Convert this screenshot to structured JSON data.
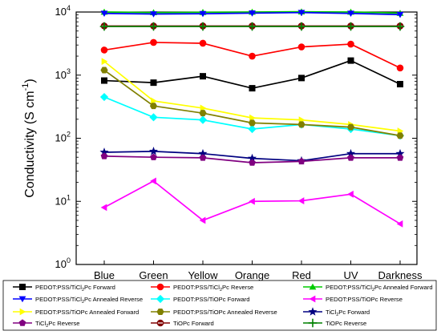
{
  "chart_data": {
    "type": "line",
    "title": "",
    "xlabel": "",
    "ylabel": "Conductivity (S cm⁻¹)",
    "ylabel_parts": [
      "Conductivity (S cm",
      "-1",
      ")"
    ],
    "yscale": "log",
    "ylim": [
      1,
      10000
    ],
    "y_ticks": [
      {
        "value": 1,
        "base": "10",
        "exp": "0"
      },
      {
        "value": 10,
        "base": "10",
        "exp": "1"
      },
      {
        "value": 100,
        "base": "10",
        "exp": "2"
      },
      {
        "value": 1000,
        "base": "10",
        "exp": "3"
      },
      {
        "value": 10000,
        "base": "10",
        "exp": "4"
      }
    ],
    "categories": [
      "Blue",
      "Green",
      "Yellow",
      "Orange",
      "Red",
      "UV",
      "Darkness"
    ],
    "legend_position": "bottom",
    "series": [
      {
        "name": "PEDOT:PSS/TiCl₂Pc Forward",
        "name_parts": [
          "PEDOT:PSS/TiCl",
          "2",
          "Pc Forward"
        ],
        "color": "#000000",
        "marker": "square",
        "values": [
          820,
          760,
          960,
          620,
          900,
          1700,
          720
        ]
      },
      {
        "name": "PEDOT:PSS/TiCl₂Pc Reverse",
        "name_parts": [
          "PEDOT:PSS/TiCl",
          "2",
          "Pc Reverse"
        ],
        "color": "#ff0000",
        "marker": "circle",
        "values": [
          2500,
          3300,
          3200,
          2000,
          2800,
          3100,
          1300
        ]
      },
      {
        "name": "PEDOT:PSS/TiCl₂Pc Annealed Forward",
        "name_parts": [
          "PEDOT:PSS/TiCl",
          "2",
          "Pc Annealed Forward"
        ],
        "color": "#00cc00",
        "marker": "triangle-up",
        "values": [
          10000,
          9800,
          9900,
          10000,
          10100,
          10000,
          9600
        ]
      },
      {
        "name": "PEDOT:PSS/TiCl₂Pc Annealed Reverse",
        "name_parts": [
          "PEDOT:PSS/TiCl",
          "2",
          "Pc Annealed Reverse"
        ],
        "color": "#0000ff",
        "marker": "triangle-down",
        "values": [
          9500,
          9300,
          9400,
          9600,
          9800,
          9500,
          9100
        ]
      },
      {
        "name": "PEDOT:PSS/TiOPc Forward",
        "name_parts": [
          "PEDOT:PSS/TiOPc Forward"
        ],
        "color": "#00ffff",
        "marker": "diamond",
        "values": [
          450,
          215,
          195,
          140,
          165,
          140,
          110
        ]
      },
      {
        "name": "PEDOT:PSS/TiOPc Reverse",
        "name_parts": [
          "PEDOT:PSS/TiOPc Reverse"
        ],
        "color": "#ff00ff",
        "marker": "triangle-left",
        "values": [
          8,
          21,
          5,
          10,
          10.2,
          13,
          4.4
        ]
      },
      {
        "name": "PEDOT:PSS/TiOPc Annealed Forward",
        "name_parts": [
          "PEDOT:PSS/TiOPc Annealed Forward"
        ],
        "color": "#ffff00",
        "marker": "triangle-right",
        "values": [
          1650,
          390,
          300,
          210,
          195,
          165,
          130
        ]
      },
      {
        "name": "PEDOT:PSS/TiOPc Annealed Reverse",
        "name_parts": [
          "PEDOT:PSS/TiOPc Annealed Reverse"
        ],
        "color": "#808000",
        "marker": "hexagon",
        "values": [
          1200,
          325,
          250,
          175,
          165,
          150,
          110
        ]
      },
      {
        "name": "TiCl₂Pc Forward",
        "name_parts": [
          "TiCl",
          "2",
          "Pc Forward"
        ],
        "color": "#000080",
        "marker": "star",
        "values": [
          60,
          62,
          57,
          48,
          44,
          57,
          57
        ]
      },
      {
        "name": "TiCl₂Pc Reverse",
        "name_parts": [
          "TiCl",
          "2",
          "Pc Reverse"
        ],
        "color": "#800080",
        "marker": "pentagon",
        "values": [
          52,
          50,
          49,
          41,
          43,
          49,
          49
        ]
      },
      {
        "name": "TiOPc Forward",
        "name_parts": [
          "TiOPc Forward"
        ],
        "color": "#800000",
        "marker": "circle-line",
        "values": [
          6000,
          6000,
          6000,
          6000,
          6000,
          6000,
          6000
        ]
      },
      {
        "name": "TiOPc Reverse",
        "name_parts": [
          "TiOPc Reverse"
        ],
        "color": "#008000",
        "marker": "plus",
        "values": [
          5900,
          5900,
          5900,
          5900,
          5900,
          5900,
          5900
        ]
      }
    ]
  }
}
